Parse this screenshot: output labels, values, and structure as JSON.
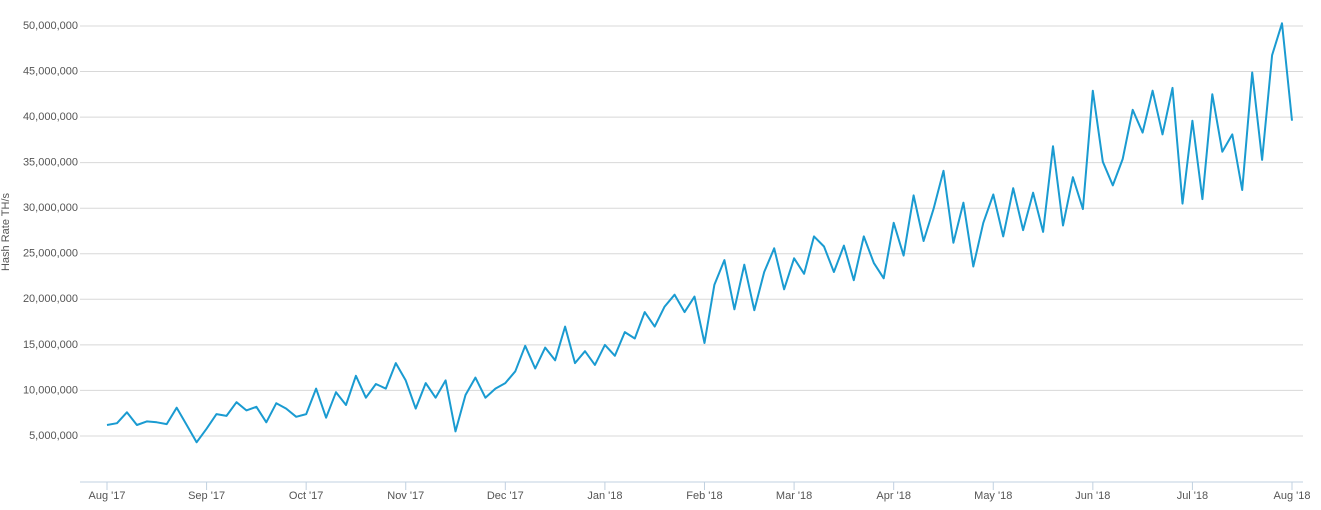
{
  "chart_data": {
    "type": "line",
    "y_label": "Hash Rate TH/s",
    "categories": [
      "Aug '17",
      null,
      null,
      null,
      null,
      null,
      null,
      null,
      null,
      null,
      "Sep '17",
      null,
      null,
      null,
      null,
      null,
      null,
      null,
      null,
      null,
      "Oct '17",
      null,
      null,
      null,
      null,
      null,
      null,
      null,
      null,
      null,
      "Nov '17",
      null,
      null,
      null,
      null,
      null,
      null,
      null,
      null,
      null,
      "Dec '17",
      null,
      null,
      null,
      null,
      null,
      null,
      null,
      null,
      null,
      "Jan '18",
      null,
      null,
      null,
      null,
      null,
      null,
      null,
      null,
      null,
      "Feb '18",
      null,
      null,
      null,
      null,
      null,
      null,
      null,
      null,
      "Mar '18",
      null,
      null,
      null,
      null,
      null,
      null,
      null,
      null,
      null,
      "Apr '18",
      null,
      null,
      null,
      null,
      null,
      null,
      null,
      null,
      null,
      "May '18",
      null,
      null,
      null,
      null,
      null,
      null,
      null,
      null,
      null,
      "Jun '18",
      null,
      null,
      null,
      null,
      null,
      null,
      null,
      null,
      null,
      "Jul '18",
      null,
      null,
      null,
      null,
      null,
      null,
      null,
      null,
      null,
      "Aug '18"
    ],
    "series": [
      {
        "name": "Hash Rate",
        "color": "#1a9bd1",
        "values": [
          6200000,
          6400000,
          7600000,
          6200000,
          6600000,
          6500000,
          6300000,
          8100000,
          6200000,
          4300000,
          5800000,
          7400000,
          7200000,
          8700000,
          7800000,
          8200000,
          6500000,
          8600000,
          8000000,
          7100000,
          7400000,
          10200000,
          7000000,
          9800000,
          8400000,
          11600000,
          9200000,
          10700000,
          10200000,
          13000000,
          11100000,
          8000000,
          10800000,
          9200000,
          11100000,
          5500000,
          9500000,
          11400000,
          9200000,
          10200000,
          10800000,
          12100000,
          14900000,
          12400000,
          14700000,
          13300000,
          17000000,
          13000000,
          14300000,
          12800000,
          15000000,
          13800000,
          16400000,
          15700000,
          18600000,
          17000000,
          19200000,
          20500000,
          18600000,
          20300000,
          15200000,
          21600000,
          24300000,
          18900000,
          23800000,
          18800000,
          23000000,
          25600000,
          21100000,
          24500000,
          22800000,
          26900000,
          25800000,
          23000000,
          25900000,
          22100000,
          26900000,
          24000000,
          22300000,
          28400000,
          24800000,
          31400000,
          26400000,
          29900000,
          34100000,
          26200000,
          30600000,
          23600000,
          28400000,
          31500000,
          26900000,
          32200000,
          27600000,
          31700000,
          27400000,
          36800000,
          28100000,
          33400000,
          29900000,
          42900000,
          35100000,
          32500000,
          35400000,
          40800000,
          38300000,
          42900000,
          38100000,
          43200000,
          30500000,
          39600000,
          31000000,
          42500000,
          36200000,
          38100000,
          32000000,
          44900000,
          35300000,
          46800000,
          50300000,
          39600000
        ]
      }
    ],
    "ylim": [
      0,
      50000000
    ],
    "yticks": [
      {
        "value": 5000000,
        "label": "5,000,000"
      },
      {
        "value": 10000000,
        "label": "10,000,000"
      },
      {
        "value": 15000000,
        "label": "15,000,000"
      },
      {
        "value": 20000000,
        "label": "20,000,000"
      },
      {
        "value": 25000000,
        "label": "25,000,000"
      },
      {
        "value": 30000000,
        "label": "30,000,000"
      },
      {
        "value": 35000000,
        "label": "35,000,000"
      },
      {
        "value": 40000000,
        "label": "40,000,000"
      },
      {
        "value": 45000000,
        "label": "45,000,000"
      },
      {
        "value": 50000000,
        "label": "50,000,000"
      }
    ],
    "grid": true
  }
}
